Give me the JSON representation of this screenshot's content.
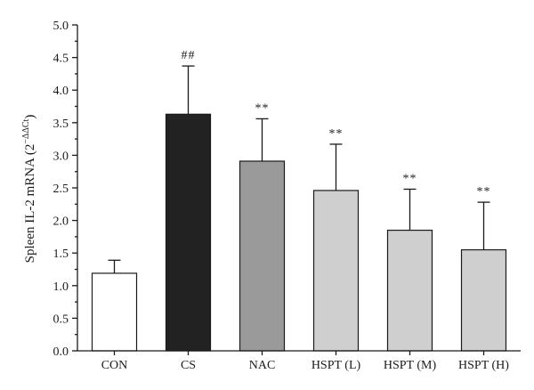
{
  "chart_data": {
    "type": "bar",
    "ylabel": "Spleen IL-2 mRNA (2",
    "ylabel_superscript": "−ΔΔCt",
    "ylabel_close": ")",
    "ylim": [
      0,
      5
    ],
    "yticks": [
      "0.0",
      "0.5",
      "1.0",
      "1.5",
      "2.0",
      "2.5",
      "3.0",
      "3.5",
      "4.0",
      "4.5",
      "5.0"
    ],
    "grid": false,
    "categories": [
      "CON",
      "CS",
      "NAC",
      "HSPT (L)",
      "HSPT (M)",
      "HSPT (H)"
    ],
    "values": [
      1.19,
      3.63,
      2.91,
      2.46,
      1.85,
      1.55
    ],
    "errors": [
      0.2,
      0.74,
      0.65,
      0.71,
      0.63,
      0.73
    ],
    "annotations": [
      "",
      "##",
      "**",
      "**",
      "**",
      "**"
    ],
    "bar_colors": [
      "#ffffff",
      "#222222",
      "#9a9a9a",
      "#cfcfcf",
      "#cfcfcf",
      "#cfcfcf"
    ]
  }
}
